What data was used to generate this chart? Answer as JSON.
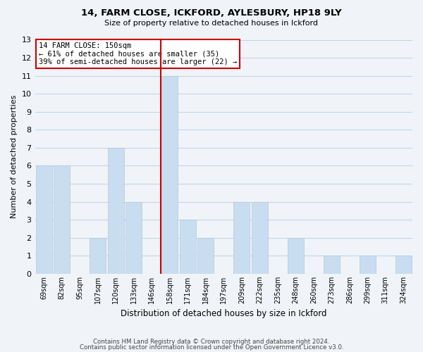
{
  "title": "14, FARM CLOSE, ICKFORD, AYLESBURY, HP18 9LY",
  "subtitle": "Size of property relative to detached houses in Ickford",
  "xlabel": "Distribution of detached houses by size in Ickford",
  "ylabel": "Number of detached properties",
  "bar_color": "#c8ddf0",
  "bar_edge_color": "#b0c8e0",
  "categories": [
    "69sqm",
    "82sqm",
    "95sqm",
    "107sqm",
    "120sqm",
    "133sqm",
    "146sqm",
    "158sqm",
    "171sqm",
    "184sqm",
    "197sqm",
    "209sqm",
    "222sqm",
    "235sqm",
    "248sqm",
    "260sqm",
    "273sqm",
    "286sqm",
    "299sqm",
    "311sqm",
    "324sqm"
  ],
  "values": [
    6,
    6,
    0,
    2,
    7,
    4,
    0,
    11,
    3,
    2,
    0,
    4,
    4,
    0,
    2,
    0,
    1,
    0,
    1,
    0,
    1
  ],
  "ylim": [
    0,
    13
  ],
  "yticks": [
    0,
    1,
    2,
    3,
    4,
    5,
    6,
    7,
    8,
    9,
    10,
    11,
    12,
    13
  ],
  "annotation_title": "14 FARM CLOSE: 150sqm",
  "annotation_line1": "← 61% of detached houses are smaller (35)",
  "annotation_line2": "39% of semi-detached houses are larger (22) →",
  "vline_index": 7,
  "vline_color": "#cc0000",
  "annotation_box_edge_color": "#cc0000",
  "footer_line1": "Contains HM Land Registry data © Crown copyright and database right 2024.",
  "footer_line2": "Contains public sector information licensed under the Open Government Licence v3.0.",
  "grid_color": "#c8d4de",
  "background_color": "#f0f4f8"
}
